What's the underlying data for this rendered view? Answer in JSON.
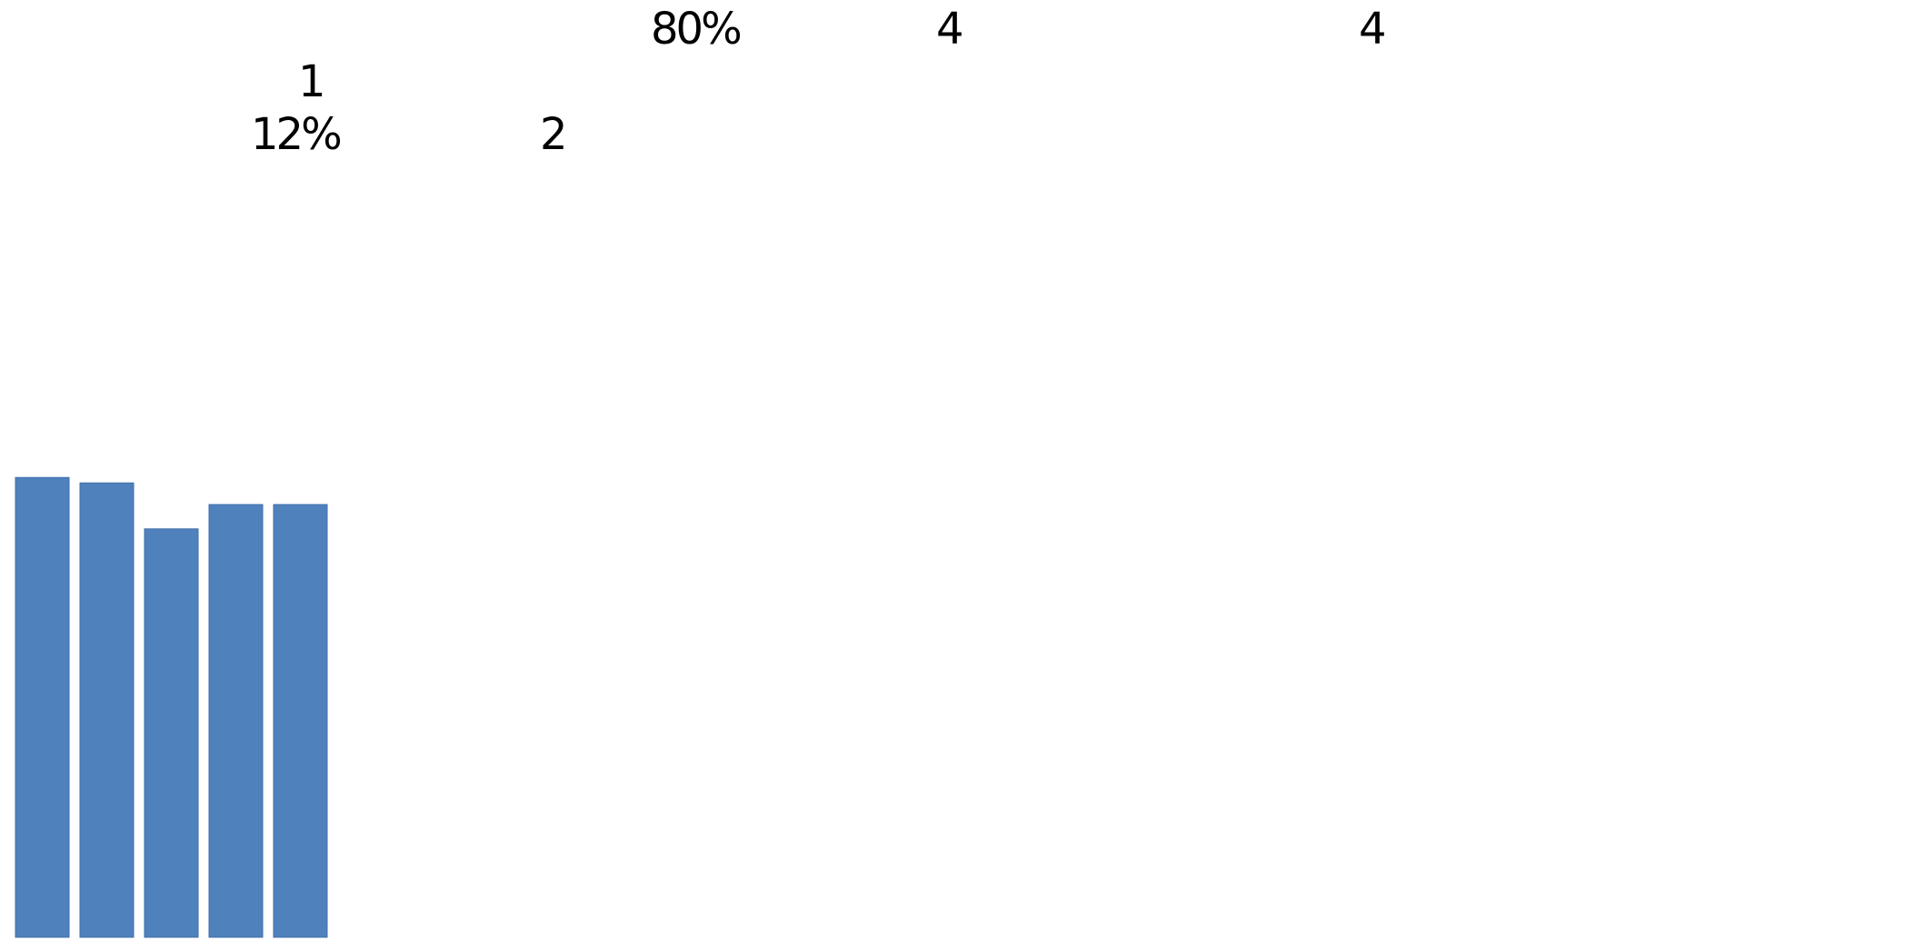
{
  "chart_data": {
    "type": "bar",
    "categories": [
      "",
      "",
      "",
      "",
      ""
    ],
    "values": [
      0.85,
      0.84,
      0.755,
      0.8,
      0.8
    ],
    "ylim": [
      0,
      1
    ],
    "grid": false,
    "legend": "none",
    "bar_color": "#4F81BD",
    "bar_edge_color": "#3F6EA8",
    "annotations": [
      "80%",
      "4",
      "4",
      "1",
      "12%",
      "2"
    ]
  }
}
